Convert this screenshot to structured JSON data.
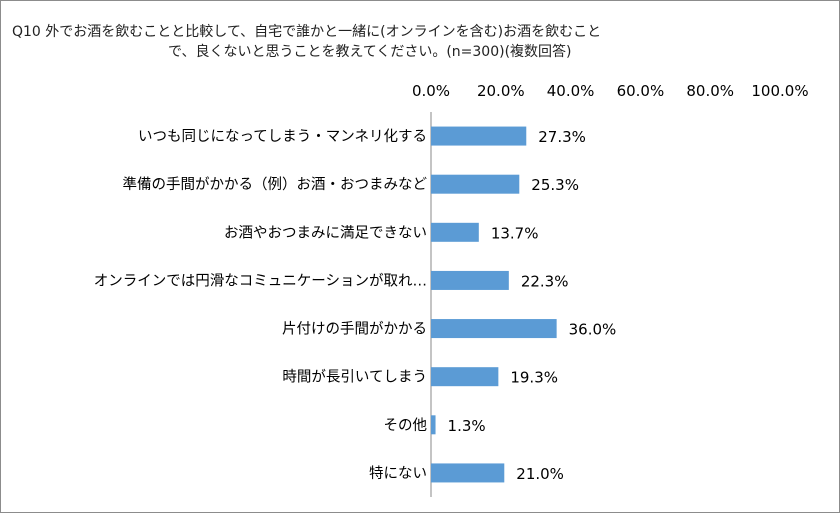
{
  "chart_data": {
    "type": "bar",
    "orientation": "horizontal",
    "title_lines": [
      "Q10 外でお酒を飲むことと比較して、自宅で誰かと一緒に(オンラインを含む)お酒を飲むこと",
      "で、良くないと思うことを教えてください。(n=300)(複数回答)"
    ],
    "categories": [
      "いつも同じになってしまう・マンネリ化する",
      "準備の手間がかかる（例）お酒・おつまみなど",
      "お酒やおつまみに満足できない",
      "オンラインでは円滑なコミュニケーションが取れ…",
      "片付けの手間がかかる",
      "時間が長引いてしまう",
      "その他",
      "特にない"
    ],
    "values": [
      27.3,
      25.3,
      13.7,
      22.3,
      36.0,
      19.3,
      1.3,
      21.0
    ],
    "value_labels": [
      "27.3%",
      "25.3%",
      "13.7%",
      "22.3%",
      "36.0%",
      "19.3%",
      "1.3%",
      "21.0%"
    ],
    "xlim": [
      0,
      100
    ],
    "x_ticks": [
      "0.0%",
      "20.0%",
      "40.0%",
      "60.0%",
      "80.0%",
      "100.0%"
    ],
    "x_axis_position": "top",
    "grid": false,
    "bar_color": "#5b9bd5"
  }
}
